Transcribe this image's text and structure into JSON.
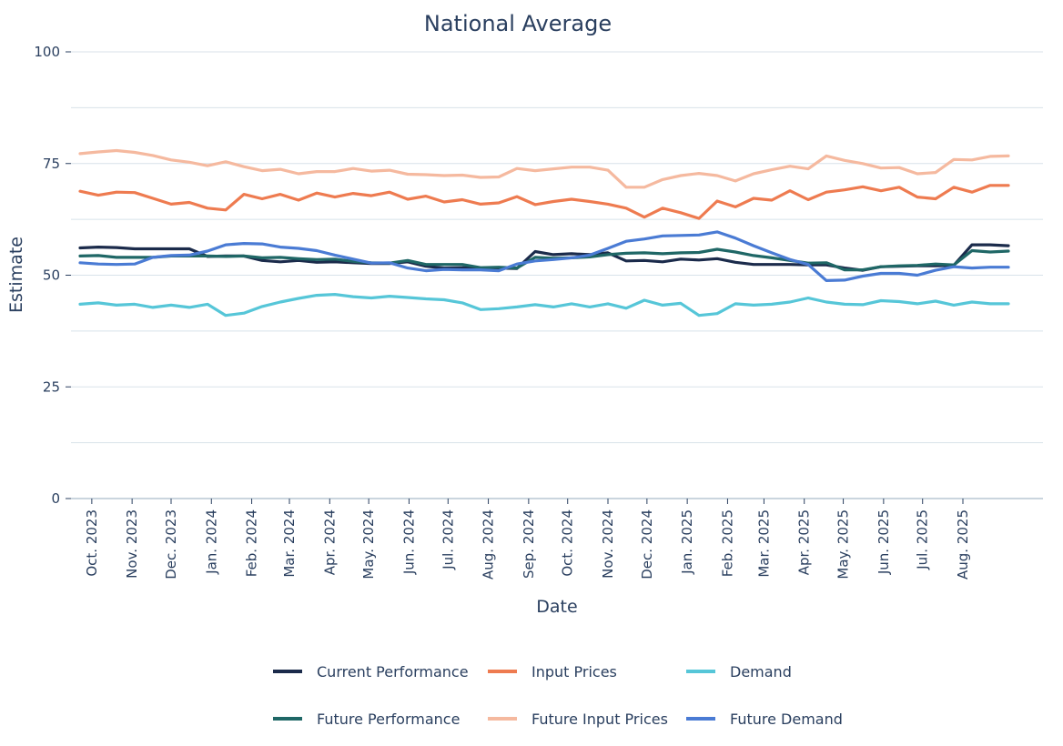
{
  "chart_data": {
    "type": "line",
    "title": "National Average",
    "xlabel": "Date",
    "ylabel": "Estimate",
    "ylim": [
      0,
      100
    ],
    "yticks": [
      0,
      25,
      50,
      75,
      100
    ],
    "grid": true,
    "legend": "bottom",
    "x": [
      "2023-09-22",
      "2023-10-06",
      "2023-10-20",
      "2023-11-03",
      "2023-11-17",
      "2023-12-01",
      "2023-12-15",
      "2023-12-29",
      "2024-01-12",
      "2024-01-26",
      "2024-02-09",
      "2024-02-23",
      "2024-03-08",
      "2024-03-22",
      "2024-04-05",
      "2024-04-19",
      "2024-05-03",
      "2024-05-17",
      "2024-05-31",
      "2024-06-14",
      "2024-06-28",
      "2024-07-12",
      "2024-07-26",
      "2024-08-09",
      "2024-08-23",
      "2024-09-06",
      "2024-09-20",
      "2024-10-04",
      "2024-10-18",
      "2024-11-01",
      "2024-11-15",
      "2024-11-29",
      "2024-12-13",
      "2024-12-27",
      "2025-01-10",
      "2025-01-24",
      "2025-02-07",
      "2025-02-21",
      "2025-03-07",
      "2025-03-21",
      "2025-04-04",
      "2025-04-18",
      "2025-05-02",
      "2025-05-16",
      "2025-05-30",
      "2025-06-13",
      "2025-06-27",
      "2025-07-11",
      "2025-07-25",
      "2025-08-08",
      "2025-08-22",
      "2025-09-05"
    ],
    "xticks": [
      {
        "date": "2023-10-01",
        "label": "Oct. 2023"
      },
      {
        "date": "2023-11-01",
        "label": "Nov. 2023"
      },
      {
        "date": "2023-12-01",
        "label": "Dec. 2023"
      },
      {
        "date": "2024-01-01",
        "label": "Jan. 2024"
      },
      {
        "date": "2024-02-01",
        "label": "Feb. 2024"
      },
      {
        "date": "2024-03-01",
        "label": "Mar. 2024"
      },
      {
        "date": "2024-04-01",
        "label": "Apr. 2024"
      },
      {
        "date": "2024-05-01",
        "label": "May. 2024"
      },
      {
        "date": "2024-06-01",
        "label": "Jun. 2024"
      },
      {
        "date": "2024-07-01",
        "label": "Jul. 2024"
      },
      {
        "date": "2024-08-01",
        "label": "Aug. 2024"
      },
      {
        "date": "2024-09-01",
        "label": "Sep. 2024"
      },
      {
        "date": "2024-10-01",
        "label": "Oct. 2024"
      },
      {
        "date": "2024-11-01",
        "label": "Nov. 2024"
      },
      {
        "date": "2024-12-01",
        "label": "Dec. 2024"
      },
      {
        "date": "2025-01-01",
        "label": "Jan. 2025"
      },
      {
        "date": "2025-02-01",
        "label": "Feb. 2025"
      },
      {
        "date": "2025-03-01",
        "label": "Mar. 2025"
      },
      {
        "date": "2025-04-01",
        "label": "Apr. 2025"
      },
      {
        "date": "2025-05-01",
        "label": "May. 2025"
      },
      {
        "date": "2025-06-01",
        "label": "Jun. 2025"
      },
      {
        "date": "2025-07-01",
        "label": "Jul. 2025"
      },
      {
        "date": "2025-08-01",
        "label": "Aug. 2025"
      }
    ],
    "series": [
      {
        "name": "Current Performance",
        "color": "#1b2b4b",
        "values": [
          56.1,
          56.3,
          56.2,
          55.9,
          55.9,
          55.9,
          55.9,
          54.2,
          54.3,
          54.3,
          53.3,
          53.0,
          53.3,
          52.9,
          53.0,
          52.8,
          52.6,
          52.6,
          53.0,
          52.0,
          51.6,
          51.7,
          51.6,
          51.6,
          51.5,
          55.3,
          54.6,
          54.8,
          54.6,
          55.0,
          53.2,
          53.3,
          53.0,
          53.6,
          53.4,
          53.7,
          52.9,
          52.4,
          52.4,
          52.4,
          52.3,
          52.3,
          51.6,
          51.1,
          51.9,
          52.0,
          52.1,
          52.1,
          52.2,
          56.8,
          56.8,
          56.6
        ]
      },
      {
        "name": "Input Prices",
        "color": "#ee7b50",
        "values": [
          68.8,
          67.9,
          68.6,
          68.5,
          67.2,
          65.9,
          66.3,
          65.0,
          64.6,
          68.1,
          67.1,
          68.1,
          66.8,
          68.4,
          67.5,
          68.3,
          67.8,
          68.6,
          67.0,
          67.7,
          66.4,
          66.9,
          65.9,
          66.2,
          67.6,
          65.8,
          66.5,
          67.0,
          66.5,
          65.9,
          65.0,
          63.0,
          65.0,
          64.0,
          62.7,
          66.6,
          65.3,
          67.2,
          66.8,
          68.9,
          66.9,
          68.6,
          69.1,
          69.8,
          68.9,
          69.7,
          67.5,
          67.1,
          69.7,
          68.6,
          70.1,
          70.1
        ]
      },
      {
        "name": "Demand",
        "color": "#56c6d8",
        "values": [
          43.5,
          43.8,
          43.3,
          43.5,
          42.8,
          43.3,
          42.8,
          43.5,
          41.0,
          41.5,
          43.0,
          44.0,
          44.8,
          45.5,
          45.7,
          45.2,
          44.9,
          45.3,
          45.0,
          44.7,
          44.5,
          43.8,
          42.3,
          42.5,
          42.9,
          43.4,
          42.9,
          43.6,
          42.9,
          43.6,
          42.6,
          44.4,
          43.3,
          43.7,
          41.0,
          41.4,
          43.6,
          43.3,
          43.5,
          44.0,
          44.9,
          44.0,
          43.5,
          43.4,
          44.3,
          44.1,
          43.6,
          44.2,
          43.3,
          44.0,
          43.6,
          43.6
        ]
      },
      {
        "name": "Future Performance",
        "color": "#1f6766",
        "values": [
          54.3,
          54.4,
          54.0,
          54.0,
          54.0,
          54.3,
          54.3,
          54.3,
          54.2,
          54.3,
          53.9,
          54.0,
          53.7,
          53.5,
          53.6,
          53.1,
          52.8,
          52.7,
          53.3,
          52.4,
          52.4,
          52.4,
          51.7,
          51.8,
          51.6,
          54.0,
          53.8,
          53.9,
          54.1,
          54.6,
          54.9,
          55.0,
          54.8,
          55.0,
          55.1,
          55.8,
          55.2,
          54.4,
          53.9,
          53.3,
          52.7,
          52.8,
          51.2,
          51.2,
          51.9,
          52.1,
          52.2,
          52.5,
          52.3,
          55.5,
          55.2,
          55.4
        ]
      },
      {
        "name": "Future Input Prices",
        "color": "#f5b99f",
        "values": [
          77.2,
          77.6,
          77.9,
          77.5,
          76.8,
          75.8,
          75.3,
          74.5,
          75.4,
          74.3,
          73.4,
          73.7,
          72.7,
          73.2,
          73.2,
          73.9,
          73.3,
          73.5,
          72.6,
          72.5,
          72.3,
          72.4,
          71.9,
          72.0,
          73.9,
          73.4,
          73.8,
          74.2,
          74.2,
          73.5,
          69.7,
          69.7,
          71.4,
          72.3,
          72.8,
          72.3,
          71.1,
          72.7,
          73.6,
          74.4,
          73.8,
          76.7,
          75.7,
          75.0,
          74.0,
          74.1,
          72.7,
          73.0,
          75.9,
          75.8,
          76.6,
          76.7
        ]
      },
      {
        "name": "Future Demand",
        "color": "#4a7bd4",
        "values": [
          52.8,
          52.5,
          52.4,
          52.5,
          54.0,
          54.4,
          54.5,
          55.4,
          56.8,
          57.1,
          57.0,
          56.3,
          56.0,
          55.5,
          54.5,
          53.6,
          52.7,
          52.8,
          51.6,
          51.0,
          51.3,
          51.2,
          51.2,
          51.0,
          52.5,
          53.2,
          53.5,
          53.9,
          54.5,
          56.0,
          57.6,
          58.1,
          58.8,
          58.9,
          59.0,
          59.7,
          58.3,
          56.6,
          55.0,
          53.5,
          52.4,
          48.8,
          48.9,
          49.8,
          50.4,
          50.4,
          50.0,
          51.1,
          51.9,
          51.6,
          51.8,
          51.8
        ]
      }
    ]
  }
}
